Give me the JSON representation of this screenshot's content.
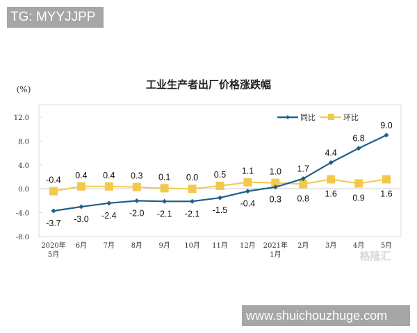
{
  "tags": {
    "top_left": "TG: MYYJJPP",
    "bottom_right": "www.shuichouzhuge.com"
  },
  "watermark": "格隆汇",
  "chart_data": {
    "type": "line",
    "title": "工业生产者出厂价格涨跌幅",
    "ylabel": "(%)",
    "xlabel": "",
    "ylim": [
      -8.0,
      12.0
    ],
    "yticks": [
      "12.0",
      "8.0",
      "4.0",
      "0.0",
      "-4.0",
      "-8.0"
    ],
    "categories": [
      "2020年5月",
      "6月",
      "7月",
      "8月",
      "9月",
      "10月",
      "11月",
      "12月",
      "2021年1月",
      "2月",
      "3月",
      "4月",
      "5月"
    ],
    "x_tick_lines": [
      [
        "2020年",
        "5月"
      ],
      [
        "6月"
      ],
      [
        "7月"
      ],
      [
        "8月"
      ],
      [
        "9月"
      ],
      [
        "10月"
      ],
      [
        "11月"
      ],
      [
        "12月"
      ],
      [
        "2021年",
        "1月"
      ],
      [
        "2月"
      ],
      [
        "3月"
      ],
      [
        "4月"
      ],
      [
        "5月"
      ]
    ],
    "series": [
      {
        "name": "同比",
        "color": "#1f5f8b",
        "marker": "diamond",
        "values": [
          -3.7,
          -3.0,
          -2.4,
          -2.0,
          -2.1,
          -2.1,
          -1.5,
          -0.4,
          0.3,
          1.7,
          4.4,
          6.8,
          9.0
        ]
      },
      {
        "name": "环比",
        "color": "#f2c94c",
        "marker": "square",
        "values": [
          -0.4,
          0.4,
          0.4,
          0.3,
          0.1,
          0.0,
          0.5,
          1.1,
          1.0,
          0.8,
          1.6,
          0.9,
          1.6
        ]
      }
    ],
    "legend_position": "top-right",
    "grid": false
  }
}
